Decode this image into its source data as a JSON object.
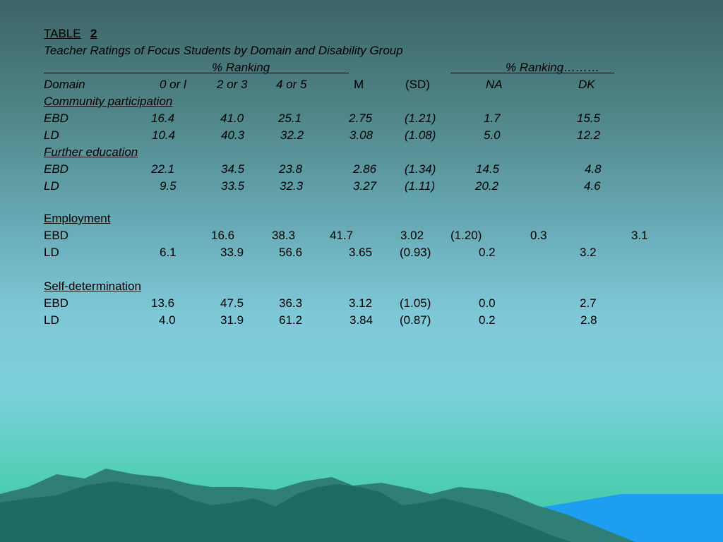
{
  "table": {
    "label": "TABLE",
    "number": "2",
    "subtitle": "Teacher Ratings of Focus Students by Domain and Disability Group",
    "group_header_1": "% Ranking",
    "group_header_2": "% Ranking………",
    "columns": [
      "Domain",
      "0 or l",
      "2 or 3",
      "4 or 5",
      "M",
      "(SD)",
      "NA",
      "DK"
    ],
    "sections": [
      {
        "title": "Community participation",
        "rows": [
          {
            "group": "EBD",
            "c0": "16.4",
            "c1": "41.0",
            "c2": "25.1",
            "m": "2.75",
            "sd": "(1.21)",
            "na": "1.7",
            "dk": "15.5"
          },
          {
            "group": "LD",
            "c0": "10.4",
            "c1": "40.3",
            "c2": "32.2",
            "m": "3.08",
            "sd": "(1.08)",
            "na": "5.0",
            "dk": "12.2"
          }
        ]
      },
      {
        "title": "Further education",
        "rows": [
          {
            "group": "EBD",
            "c0": "22.1",
            "c1": "34.5",
            "c2": "23.8",
            "m": "2.86",
            "sd": "(1.34)",
            "na": "14.5",
            "dk": "4.8"
          },
          {
            "group": "LD",
            "c0": "9.5",
            "c1": "33.5",
            "c2": "32.3",
            "m": "3.27",
            "sd": "(1.11)",
            "na": "20.2",
            "dk": "4.6"
          }
        ]
      },
      {
        "title": "Employment",
        "rows": [
          {
            "group": "EBD",
            "c0": "16.6",
            "c1": "38.3",
            "c2": "41.7",
            "m": "3.02",
            "sd": "(1.20)",
            "na": "0.3",
            "dk": "3.1"
          },
          {
            "group": "LD",
            "c0": "6.1",
            "c1": "33.9",
            "c2": "56.6",
            "m": "3.65",
            "sd": "(0.93)",
            "na": "0.2",
            "dk": "3.2"
          }
        ]
      },
      {
        "title": "Self-determination",
        "rows": [
          {
            "group": "EBD",
            "c0": "13.6",
            "c1": "47.5",
            "c2": "36.3",
            "m": "3.12",
            "sd": "(1.05)",
            "na": "0.0",
            "dk": "2.7"
          },
          {
            "group": "LD",
            "c0": "4.0",
            "c1": "31.9",
            "c2": "61.2",
            "m": "3.84",
            "sd": "(0.87)",
            "na": "0.2",
            "dk": "2.8"
          }
        ]
      }
    ]
  },
  "colors": {
    "mountain_back": "#2f7f78",
    "mountain_front": "#1e6b66",
    "water": "#1d9ef0"
  }
}
